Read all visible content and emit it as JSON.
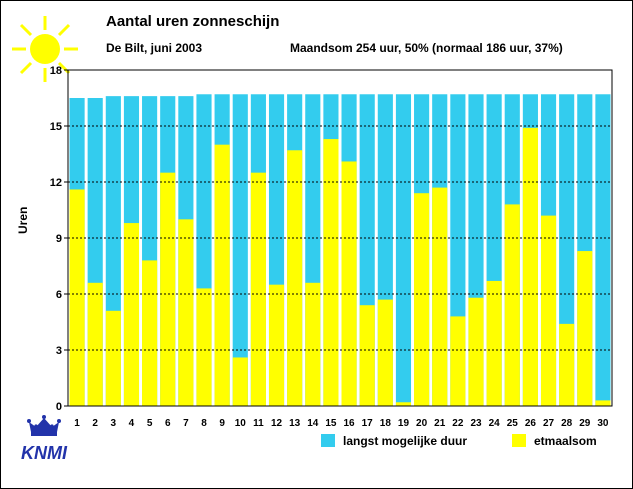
{
  "header": {
    "title": "Aantal uren zonneschijn",
    "subtitle": "De Bilt, juni 2003",
    "summary": "Maandsom 254 uur, 50% (normaal 186 uur, 37%)"
  },
  "logo": {
    "text": "KNMI"
  },
  "colors": {
    "max_duration": "#33ccee",
    "sunshine": "#ffff00",
    "grid": "#000000"
  },
  "chart_data": {
    "type": "bar",
    "title": "Aantal uren zonneschijn",
    "xlabel": "",
    "ylabel": "Uren",
    "ylim": [
      0,
      18
    ],
    "yticks": [
      0,
      3,
      6,
      9,
      12,
      15,
      18
    ],
    "categories": [
      "1",
      "2",
      "3",
      "4",
      "5",
      "6",
      "7",
      "8",
      "9",
      "10",
      "11",
      "12",
      "13",
      "14",
      "15",
      "16",
      "17",
      "18",
      "19",
      "20",
      "21",
      "22",
      "23",
      "24",
      "25",
      "26",
      "27",
      "28",
      "29",
      "30"
    ],
    "series": [
      {
        "name": "langst mogelijke duur",
        "color": "#33ccee",
        "values": [
          16.5,
          16.5,
          16.6,
          16.6,
          16.6,
          16.6,
          16.6,
          16.7,
          16.7,
          16.7,
          16.7,
          16.7,
          16.7,
          16.7,
          16.7,
          16.7,
          16.7,
          16.7,
          16.7,
          16.7,
          16.7,
          16.7,
          16.7,
          16.7,
          16.7,
          16.7,
          16.7,
          16.7,
          16.7,
          16.7
        ]
      },
      {
        "name": "etmaalsom",
        "color": "#ffff00",
        "values": [
          11.6,
          6.6,
          5.1,
          9.8,
          7.8,
          12.5,
          10.0,
          6.3,
          14.0,
          2.6,
          12.5,
          6.5,
          13.7,
          6.6,
          14.3,
          13.1,
          5.4,
          5.7,
          0.2,
          11.4,
          11.7,
          4.8,
          5.8,
          6.7,
          10.8,
          14.9,
          10.2,
          4.4,
          8.3,
          0.3
        ]
      }
    ],
    "legend": {
      "position": "bottom-right",
      "entries": [
        "langst mogelijke duur",
        "etmaalsom"
      ]
    }
  }
}
